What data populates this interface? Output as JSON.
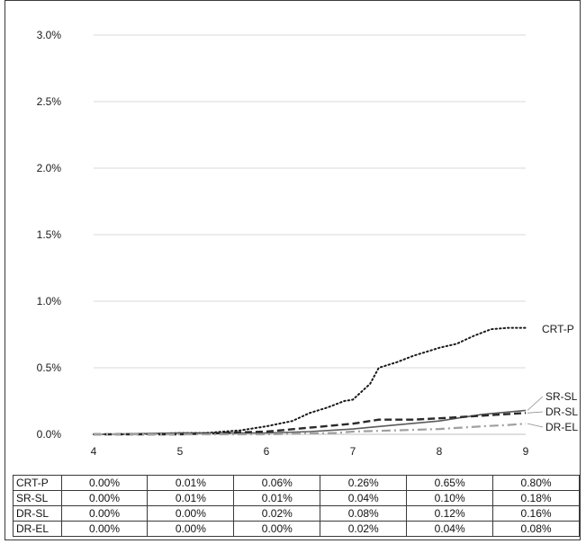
{
  "chart_data": {
    "type": "line",
    "title": "",
    "xlabel": "",
    "ylabel": "",
    "xlim": [
      4,
      9
    ],
    "ylim": [
      0,
      3.0
    ],
    "x_ticks": [
      "4",
      "5",
      "6",
      "7",
      "8",
      "9"
    ],
    "y_ticks": [
      "0.0%",
      "0.5%",
      "1.0%",
      "1.5%",
      "2.0%",
      "2.5%",
      "3.0%"
    ],
    "grid": true,
    "legend": "direct labels at line ends (right)",
    "series": [
      {
        "name": "CRT-P",
        "style": "dotted",
        "color": "#1a1a1a",
        "x": [
          4.0,
          4.5,
          5.0,
          5.3,
          5.5,
          5.7,
          5.9,
          6.0,
          6.3,
          6.5,
          6.7,
          6.9,
          7.0,
          7.2,
          7.3,
          7.5,
          7.7,
          7.9,
          8.0,
          8.2,
          8.4,
          8.6,
          8.8,
          9.0
        ],
        "y": [
          0.0,
          0.0,
          0.01,
          0.01,
          0.02,
          0.03,
          0.05,
          0.06,
          0.1,
          0.16,
          0.2,
          0.25,
          0.26,
          0.38,
          0.5,
          0.54,
          0.59,
          0.63,
          0.65,
          0.68,
          0.74,
          0.79,
          0.8,
          0.8
        ]
      },
      {
        "name": "SR-SL",
        "style": "solid",
        "color": "#5a5a5a",
        "x": [
          4.0,
          5.0,
          6.0,
          6.5,
          7.0,
          7.5,
          8.0,
          8.5,
          9.0
        ],
        "y": [
          0.0,
          0.01,
          0.01,
          0.02,
          0.04,
          0.07,
          0.1,
          0.15,
          0.18
        ]
      },
      {
        "name": "DR-SL",
        "style": "dashed",
        "color": "#2a2a2a",
        "x": [
          4.0,
          5.0,
          5.5,
          6.0,
          6.5,
          7.0,
          7.3,
          7.7,
          8.0,
          8.5,
          9.0
        ],
        "y": [
          0.0,
          0.0,
          0.01,
          0.02,
          0.05,
          0.08,
          0.11,
          0.11,
          0.12,
          0.14,
          0.16
        ]
      },
      {
        "name": "DR-EL",
        "style": "dash-dot",
        "color": "#a0a0a0",
        "x": [
          4.0,
          5.0,
          6.0,
          6.8,
          7.0,
          7.5,
          8.0,
          8.5,
          8.8,
          9.0
        ],
        "y": [
          0.0,
          0.0,
          0.0,
          0.01,
          0.02,
          0.03,
          0.04,
          0.06,
          0.07,
          0.08
        ]
      }
    ],
    "table": {
      "rows": [
        {
          "name": "CRT-P",
          "values": [
            "0.00%",
            "0.01%",
            "0.06%",
            "0.26%",
            "0.65%",
            "0.80%"
          ]
        },
        {
          "name": "SR-SL",
          "values": [
            "0.00%",
            "0.01%",
            "0.01%",
            "0.04%",
            "0.10%",
            "0.18%"
          ]
        },
        {
          "name": "DR-SL",
          "values": [
            "0.00%",
            "0.00%",
            "0.02%",
            "0.08%",
            "0.12%",
            "0.16%"
          ]
        },
        {
          "name": "DR-EL",
          "values": [
            "0.00%",
            "0.00%",
            "0.00%",
            "0.02%",
            "0.04%",
            "0.08%"
          ]
        }
      ]
    }
  }
}
